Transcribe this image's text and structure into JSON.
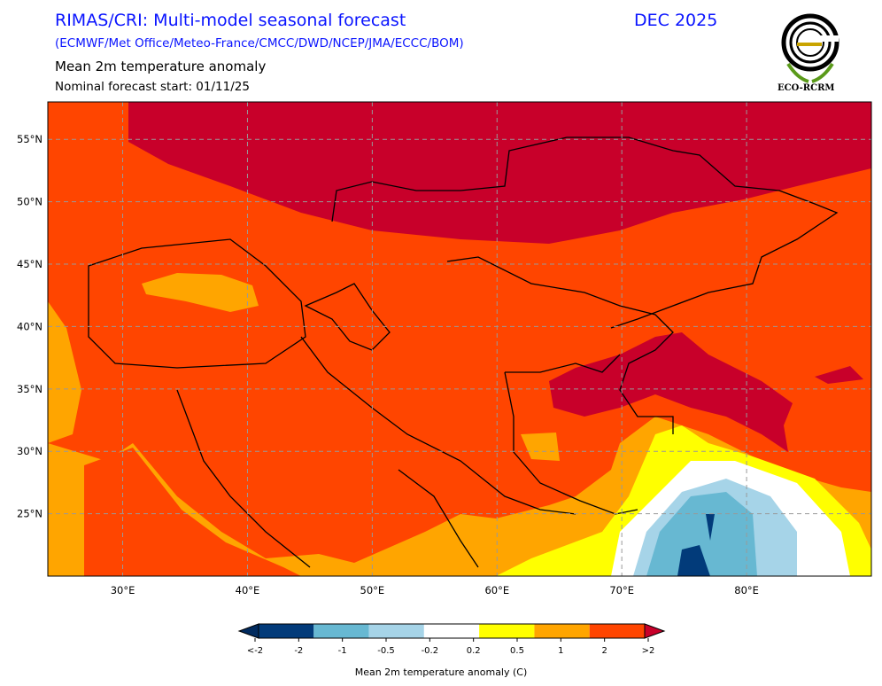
{
  "header": {
    "title": "RIMAS/CRI: Multi-model seasonal forecast",
    "models": "(ECMWF/Met Office/Meteo-France/CMCC/DWD/NCEP/JMA/ECCC/BOM)",
    "date": "DEC 2025",
    "variable": "Mean 2m temperature anomaly",
    "forecast_start": "Nominal forecast start: 01/11/25"
  },
  "logo": {
    "text": "ECO-RCRM"
  },
  "map": {
    "lon_range": [
      24,
      90
    ],
    "lat_range": [
      20,
      58
    ],
    "lon_ticks": [
      {
        "v": 30,
        "label": "30°E"
      },
      {
        "v": 40,
        "label": "40°E"
      },
      {
        "v": 50,
        "label": "50°E"
      },
      {
        "v": 60,
        "label": "60°E"
      },
      {
        "v": 70,
        "label": "70°E"
      },
      {
        "v": 80,
        "label": "80°E"
      }
    ],
    "lat_ticks": [
      {
        "v": 55,
        "label": "55°N"
      },
      {
        "v": 50,
        "label": "50°N"
      },
      {
        "v": 45,
        "label": "45°N"
      },
      {
        "v": 40,
        "label": "40°N"
      },
      {
        "v": 35,
        "label": "35°N"
      },
      {
        "v": 30,
        "label": "30°N"
      },
      {
        "v": 25,
        "label": "25°N"
      }
    ]
  },
  "colorbar": {
    "label": "Mean 2m temperature anomaly (C)",
    "tick_labels": [
      "<-2",
      "-2",
      "-1",
      "-0.5",
      "-0.2",
      "0.2",
      "0.5",
      "1",
      "2",
      ">2"
    ],
    "colors": [
      "#002a5e",
      "#023b7a",
      "#67b8d2",
      "#a6d4e8",
      "#ffffff",
      "#ffff00",
      "#ffa500",
      "#ff4500",
      "#c8002a"
    ]
  }
}
